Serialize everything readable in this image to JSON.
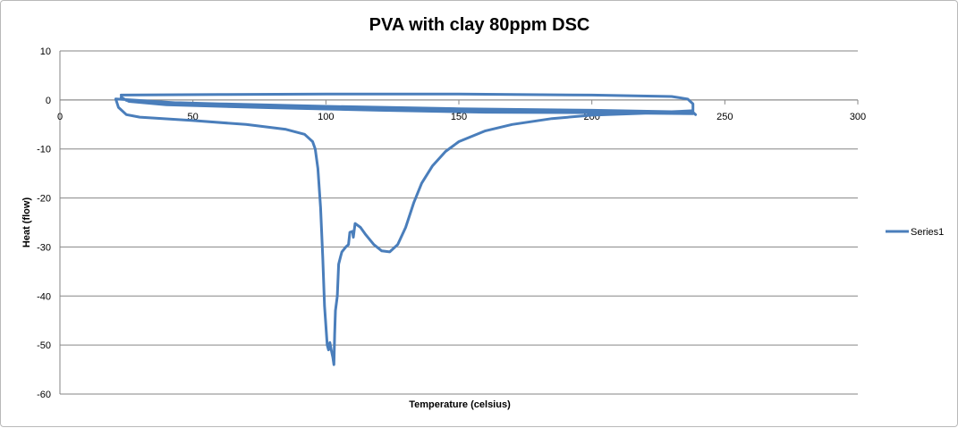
{
  "chart_data": {
    "type": "scatter",
    "title": "PVA with clay 80ppm DSC",
    "xlabel": "Temperature (celsius)",
    "ylabel": "Heat (flow)",
    "xlim": [
      0,
      300
    ],
    "ylim": [
      -60,
      10
    ],
    "x_ticks": [
      0,
      50,
      100,
      150,
      200,
      250,
      300
    ],
    "y_ticks": [
      10,
      0,
      -10,
      -20,
      -30,
      -40,
      -50,
      -60
    ],
    "grid": "horizontal",
    "legend_position": "right",
    "series": [
      {
        "name": "Series1",
        "color": "#4a7ebb",
        "points": [
          [
            23,
            1.0
          ],
          [
            60,
            1.1
          ],
          [
            100,
            1.2
          ],
          [
            150,
            1.2
          ],
          [
            200,
            1.0
          ],
          [
            230,
            0.7
          ],
          [
            236,
            0.2
          ],
          [
            238,
            -0.8
          ],
          [
            238,
            -2.2
          ],
          [
            230,
            -2.4
          ],
          [
            200,
            -2.1
          ],
          [
            150,
            -1.8
          ],
          [
            100,
            -1.3
          ],
          [
            60,
            -0.8
          ],
          [
            35,
            -0.4
          ],
          [
            25,
            -0.1
          ],
          [
            23,
            0.6
          ],
          [
            24,
            0.2
          ],
          [
            26,
            -0.3
          ],
          [
            40,
            -1.0
          ],
          [
            80,
            -1.6
          ],
          [
            120,
            -2.1
          ],
          [
            160,
            -2.5
          ],
          [
            200,
            -2.6
          ],
          [
            238,
            -2.8
          ],
          [
            238,
            -2.4
          ],
          [
            200,
            -2.3
          ],
          [
            150,
            -2.0
          ],
          [
            100,
            -1.5
          ],
          [
            50,
            -0.8
          ],
          [
            21,
            0.2
          ],
          [
            22,
            -1.5
          ],
          [
            25,
            -3.0
          ],
          [
            30,
            -3.5
          ],
          [
            50,
            -4.2
          ],
          [
            70,
            -5.0
          ],
          [
            85,
            -6.0
          ],
          [
            92,
            -7.0
          ],
          [
            95,
            -8.5
          ],
          [
            96,
            -10.0
          ],
          [
            97,
            -14.0
          ],
          [
            98,
            -22.0
          ],
          [
            98.8,
            -32.0
          ],
          [
            99.5,
            -42.0
          ],
          [
            100.5,
            -50.0
          ],
          [
            101,
            -51.0
          ],
          [
            101.5,
            -49.5
          ],
          [
            102,
            -51.0
          ],
          [
            102.6,
            -52.5
          ],
          [
            103,
            -54.0
          ],
          [
            103.3,
            -48.0
          ],
          [
            103.6,
            -43.0
          ],
          [
            104.3,
            -40.0
          ],
          [
            104.8,
            -33.5
          ],
          [
            105.5,
            -32.0
          ],
          [
            106,
            -31.0
          ],
          [
            107.5,
            -30.0
          ],
          [
            108.5,
            -29.5
          ],
          [
            109,
            -27.0
          ],
          [
            110,
            -26.8
          ],
          [
            110.3,
            -28.0
          ],
          [
            111,
            -25.2
          ],
          [
            113,
            -26.0
          ],
          [
            115,
            -27.5
          ],
          [
            118,
            -29.5
          ],
          [
            121,
            -30.8
          ],
          [
            124,
            -31.0
          ],
          [
            127,
            -29.5
          ],
          [
            130,
            -26.0
          ],
          [
            133,
            -21.0
          ],
          [
            136,
            -17.0
          ],
          [
            140,
            -13.5
          ],
          [
            145,
            -10.5
          ],
          [
            150,
            -8.5
          ],
          [
            160,
            -6.3
          ],
          [
            170,
            -5.0
          ],
          [
            185,
            -3.8
          ],
          [
            200,
            -3.1
          ],
          [
            220,
            -2.7
          ],
          [
            238,
            -2.5
          ],
          [
            239,
            -3.0
          ]
        ]
      }
    ]
  }
}
